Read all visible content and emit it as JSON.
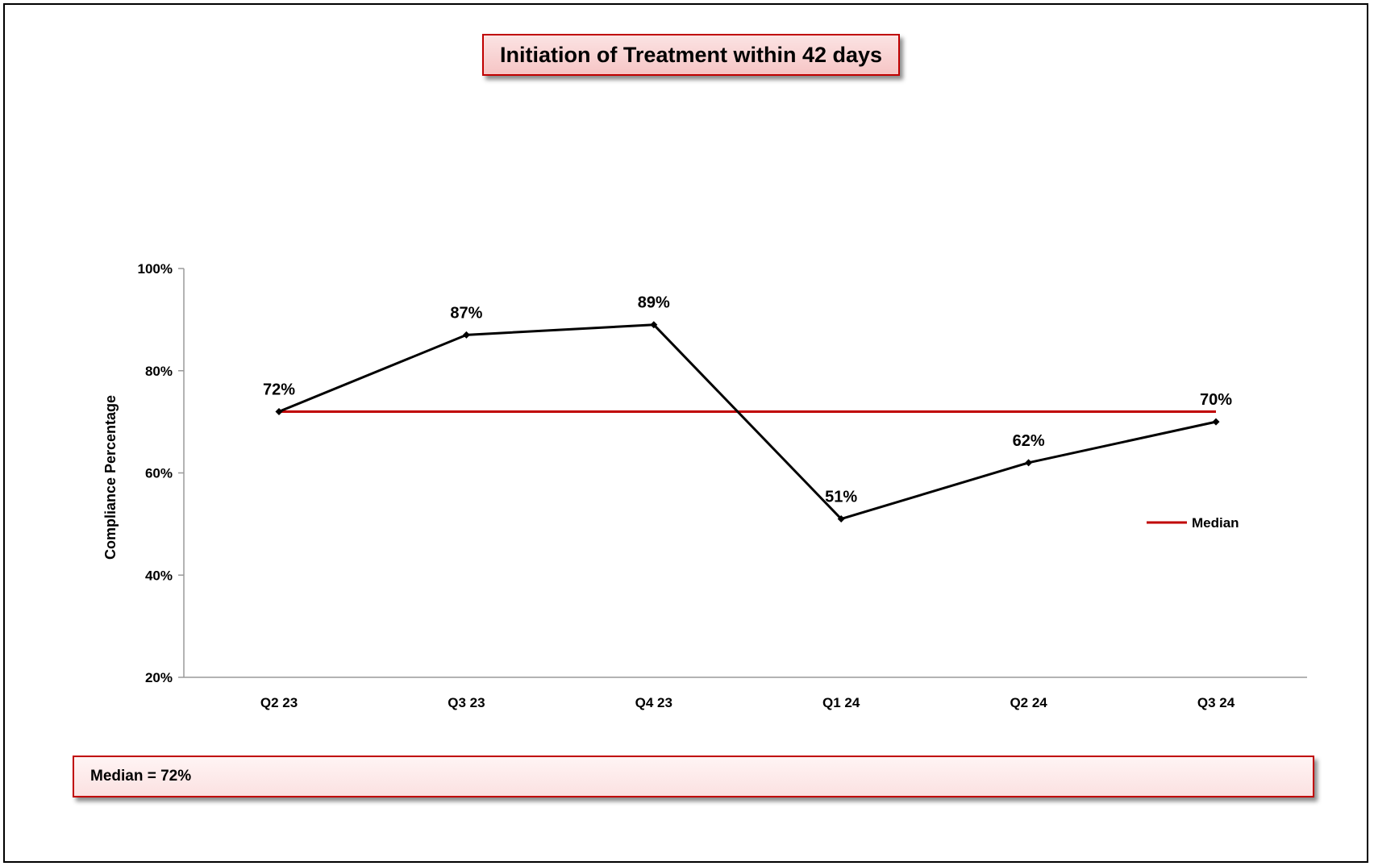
{
  "chart_data": {
    "type": "line",
    "title": "Initiation of Treatment within 42 days",
    "ylabel": "Compliance Percentage",
    "xlabel": "",
    "categories": [
      "Q2 23",
      "Q3 23",
      "Q4 23",
      "Q1 24",
      "Q2 24",
      "Q3 24"
    ],
    "series": [
      {
        "values": [
          72,
          87,
          89,
          51,
          62,
          70
        ],
        "color": "#000000",
        "data_labels": [
          "72%",
          "87%",
          "89%",
          "51%",
          "62%",
          "70%"
        ]
      },
      {
        "name": "Median",
        "values": [
          72,
          72,
          72,
          72,
          72,
          72
        ],
        "color": "#c00000"
      }
    ],
    "ylim": [
      20,
      100
    ],
    "yticks": [
      20,
      40,
      60,
      80,
      100
    ],
    "ytick_labels": [
      "20%",
      "40%",
      "60%",
      "80%",
      "100%"
    ],
    "grid": false,
    "legend": {
      "entries": [
        "Median"
      ],
      "placement": "right"
    }
  },
  "median_note": "Median = 72%",
  "colors": {
    "accent": "#c00000",
    "box_fill": "#f6c5c5",
    "line": "#000000"
  }
}
